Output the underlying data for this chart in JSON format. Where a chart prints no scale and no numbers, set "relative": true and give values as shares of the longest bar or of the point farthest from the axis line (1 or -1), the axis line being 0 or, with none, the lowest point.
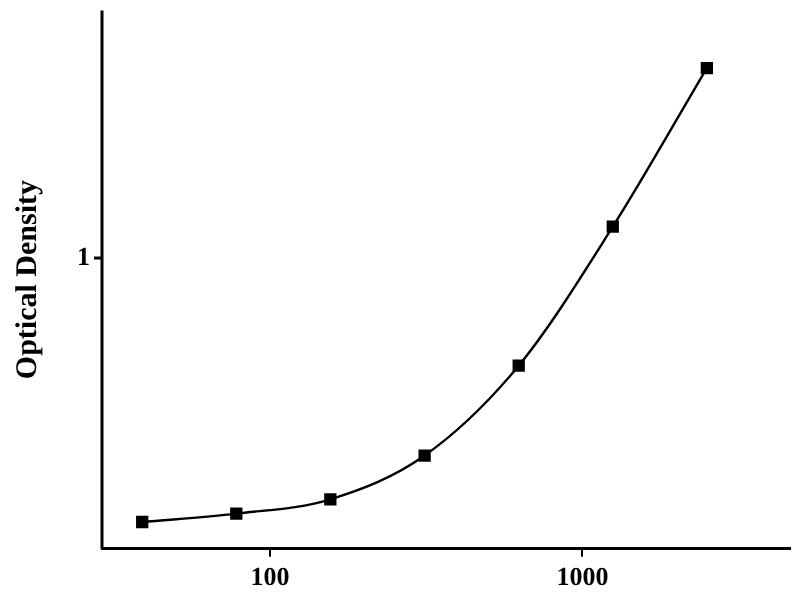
{
  "chart_data": {
    "type": "line",
    "ylabel": "Optical Density",
    "log": "x",
    "relative": true,
    "grid": false,
    "legend": false,
    "marker": "square",
    "line_style": "solid",
    "annotations": [
      "1"
    ],
    "x": [
      39,
      78,
      156,
      312.5,
      625,
      1250,
      2500
    ],
    "series": [
      {
        "color": "#000000",
        "values": [
          0.0557,
          0.0732,
          0.103,
          0.194,
          0.381,
          0.67,
          1
        ]
      }
    ],
    "xlim": [
      29,
      4600
    ],
    "xticks": [
      100,
      1000
    ]
  }
}
